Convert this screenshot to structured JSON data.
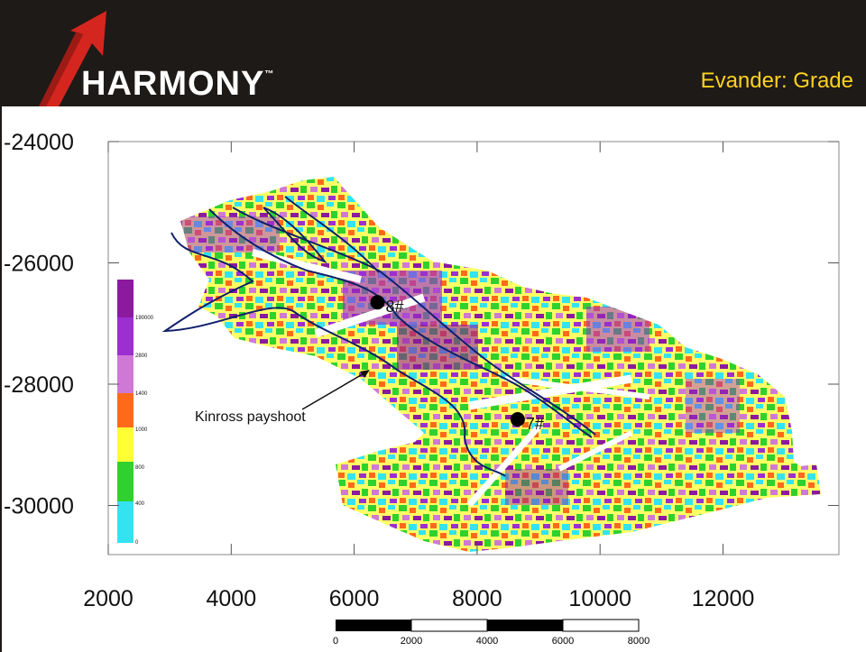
{
  "header": {
    "logo_text": "HARMONY",
    "logo_tm": "™",
    "title": "Evander: Grade"
  },
  "map": {
    "y_ticks": [
      {
        "value": -24000,
        "label": "-24000"
      },
      {
        "value": -26000,
        "label": "-26000"
      },
      {
        "value": -28000,
        "label": "-28000"
      },
      {
        "value": -30000,
        "label": "-30000"
      }
    ],
    "x_ticks": [
      {
        "value": 2000,
        "label": "2000"
      },
      {
        "value": 4000,
        "label": "4000"
      },
      {
        "value": 6000,
        "label": "6000"
      },
      {
        "value": 8000,
        "label": "8000"
      },
      {
        "value": 10000,
        "label": "10000"
      },
      {
        "value": 12000,
        "label": "12000"
      }
    ],
    "shafts": [
      {
        "label": "8#",
        "x": 6380,
        "y": -26650
      },
      {
        "label": "7#",
        "x": 8660,
        "y": -28580
      }
    ],
    "annotation": {
      "text": "Kinross payshoot",
      "x": 6600,
      "y": -27900
    },
    "scale_bar": {
      "labels": [
        "0",
        "2000",
        "4000",
        "6000",
        "8000"
      ]
    },
    "legend": {
      "labels": [
        "190000",
        "2800",
        "1400",
        "1000",
        "800",
        "400",
        "0"
      ],
      "colors": [
        "#8b1a9e",
        "#9b2fd0",
        "#cf79d6",
        "#ff6a1a",
        "#ffff33",
        "#2fd12f",
        "#33e3f0"
      ]
    }
  }
}
